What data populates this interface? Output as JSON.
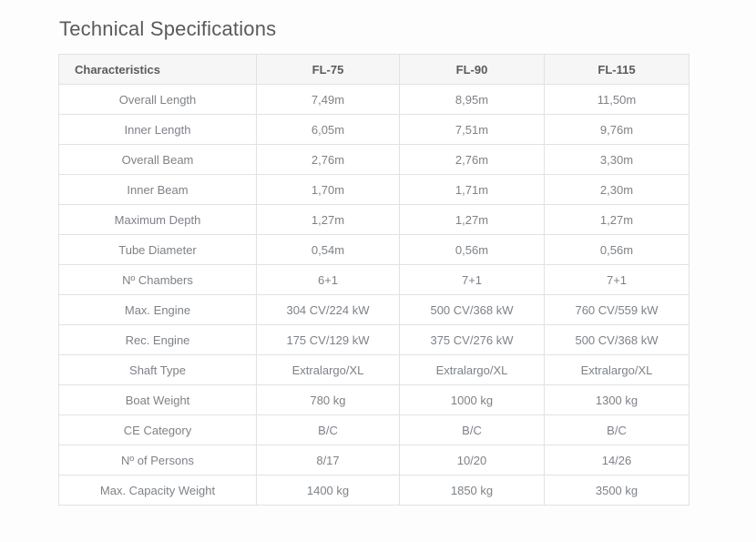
{
  "page": {
    "title": "Technical Specifications"
  },
  "colors": {
    "page_background": "#fdfdfd",
    "header_background": "#f6f6f6",
    "border": "#e2e2e2",
    "header_text": "#5a5b5e",
    "body_text": "#7e8287",
    "title_text": "#595a5c"
  },
  "table": {
    "columns": [
      "Characteristics",
      "FL-75",
      "FL-90",
      "FL-115"
    ],
    "rows": [
      {
        "label": "Overall Length",
        "values": [
          "7,49m",
          "8,95m",
          "11,50m"
        ]
      },
      {
        "label": "Inner Length",
        "values": [
          "6,05m",
          "7,51m",
          "9,76m"
        ]
      },
      {
        "label": "Overall Beam",
        "values": [
          "2,76m",
          "2,76m",
          "3,30m"
        ]
      },
      {
        "label": "Inner Beam",
        "values": [
          "1,70m",
          "1,71m",
          "2,30m"
        ]
      },
      {
        "label": "Maximum Depth",
        "values": [
          "1,27m",
          "1,27m",
          "1,27m"
        ]
      },
      {
        "label": "Tube Diameter",
        "values": [
          "0,54m",
          "0,56m",
          "0,56m"
        ]
      },
      {
        "label": "Nº Chambers",
        "values": [
          "6+1",
          "7+1",
          "7+1"
        ]
      },
      {
        "label": "Max. Engine",
        "values": [
          "304 CV/224 kW",
          "500 CV/368 kW",
          "760 CV/559 kW"
        ]
      },
      {
        "label": "Rec. Engine",
        "values": [
          "175 CV/129 kW",
          "375 CV/276 kW",
          "500 CV/368 kW"
        ]
      },
      {
        "label": "Shaft Type",
        "values": [
          "Extralargo/XL",
          "Extralargo/XL",
          "Extralargo/XL"
        ]
      },
      {
        "label": "Boat Weight",
        "values": [
          "780 kg",
          "1000 kg",
          "1300 kg"
        ]
      },
      {
        "label": "CE Category",
        "values": [
          "B/C",
          "B/C",
          "B/C"
        ]
      },
      {
        "label": "Nº of Persons",
        "values": [
          "8/17",
          "10/20",
          "14/26"
        ]
      },
      {
        "label": "Max. Capacity Weight",
        "values": [
          "1400 kg",
          "1850 kg",
          "3500 kg"
        ]
      }
    ]
  }
}
